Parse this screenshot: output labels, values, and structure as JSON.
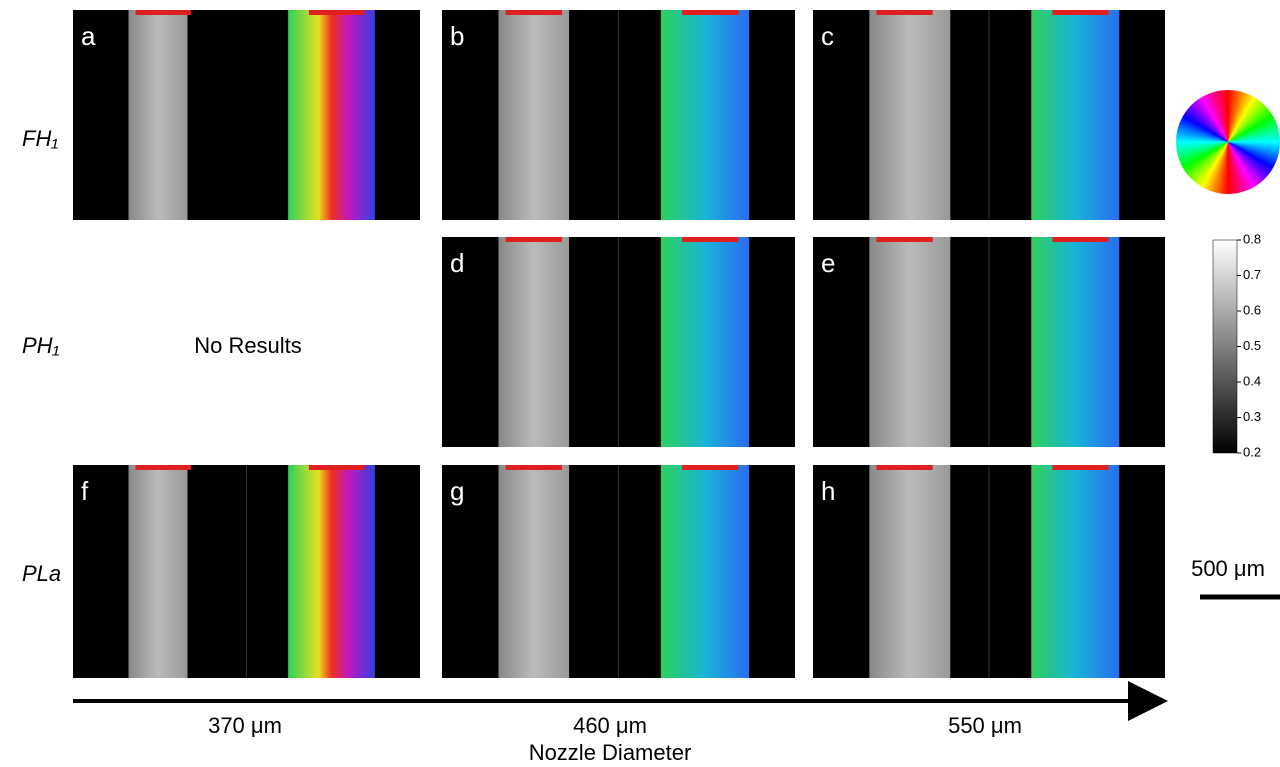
{
  "panels": [
    {
      "label": "a"
    },
    {
      "label": "b"
    },
    {
      "label": "c"
    },
    {
      "label": "d"
    },
    {
      "label": "e"
    },
    {
      "label": "f"
    },
    {
      "label": "g"
    },
    {
      "label": "h"
    }
  ],
  "rows": [
    "FH₁",
    "PH₁",
    "PLa"
  ],
  "no_results": "No Results",
  "columns": [
    "370 μm",
    "460 μm",
    "550 μm"
  ],
  "axis_title": "Nozzle Diameter",
  "colorbar": {
    "ticks": [
      0.8,
      0.7,
      0.6,
      0.5,
      0.4,
      0.3,
      0.2
    ]
  },
  "scale_bar": "500 μm"
}
